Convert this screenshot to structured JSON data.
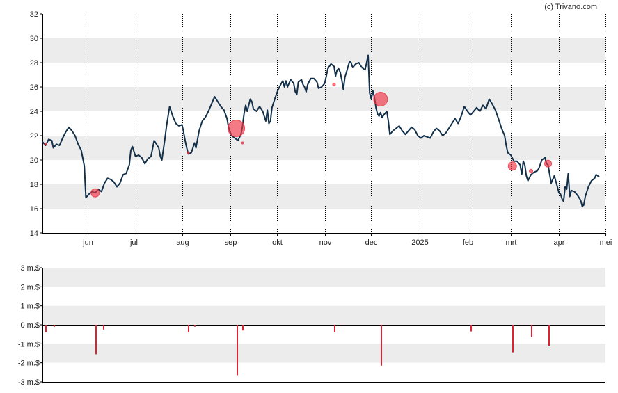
{
  "credit": "(c) Trivano.com",
  "colors": {
    "band": "#ececec",
    "price_line": "#12304a",
    "marker": "#ee3344",
    "bar": "#dd2233",
    "axis": "#000000"
  },
  "chart_data": [
    {
      "type": "line",
      "grid": true,
      "ylim": [
        14,
        32
      ],
      "y_ticks": [
        "14",
        "16",
        "18",
        "20",
        "22",
        "24",
        "26",
        "28",
        "30",
        "32"
      ],
      "x_ticks": [
        {
          "label": "jun",
          "day": 29
        },
        {
          "label": "jul",
          "day": 59
        },
        {
          "label": "aug",
          "day": 90
        },
        {
          "label": "sep",
          "day": 121
        },
        {
          "label": "okt",
          "day": 151
        },
        {
          "label": "nov",
          "day": 182
        },
        {
          "label": "dec",
          "day": 212
        },
        {
          "label": "2025",
          "day": 243
        },
        {
          "label": "feb",
          "day": 274
        },
        {
          "label": "mrt",
          "day": 302
        },
        {
          "label": "apr",
          "day": 333
        },
        {
          "label": "mei",
          "day": 363
        }
      ],
      "x_range": [
        0,
        363
      ],
      "price": [
        [
          0,
          21.5
        ],
        [
          2,
          21.2
        ],
        [
          4,
          21.7
        ],
        [
          6,
          21.6
        ],
        [
          7,
          21.0
        ],
        [
          9,
          21.3
        ],
        [
          11,
          21.2
        ],
        [
          13,
          21.8
        ],
        [
          15,
          22.3
        ],
        [
          17,
          22.7
        ],
        [
          19,
          22.4
        ],
        [
          21,
          22.0
        ],
        [
          23,
          21.3
        ],
        [
          25,
          20.8
        ],
        [
          27,
          19.5
        ],
        [
          28,
          16.9
        ],
        [
          30,
          17.2
        ],
        [
          32,
          17.4
        ],
        [
          34,
          17.3
        ],
        [
          36,
          17.6
        ],
        [
          38,
          17.4
        ],
        [
          40,
          18.1
        ],
        [
          42,
          18.5
        ],
        [
          44,
          18.4
        ],
        [
          46,
          18.2
        ],
        [
          48,
          17.8
        ],
        [
          50,
          18.1
        ],
        [
          52,
          18.8
        ],
        [
          54,
          18.9
        ],
        [
          56,
          19.6
        ],
        [
          57,
          20.8
        ],
        [
          58,
          21.1
        ],
        [
          60,
          20.3
        ],
        [
          62,
          20.4
        ],
        [
          64,
          20.2
        ],
        [
          66,
          19.7
        ],
        [
          68,
          20.1
        ],
        [
          70,
          20.3
        ],
        [
          72,
          21.6
        ],
        [
          74,
          21.2
        ],
        [
          75,
          21.0
        ],
        [
          76,
          20.3
        ],
        [
          77,
          20.0
        ],
        [
          79,
          21.8
        ],
        [
          80,
          22.8
        ],
        [
          81,
          23.6
        ],
        [
          82,
          24.4
        ],
        [
          84,
          23.6
        ],
        [
          86,
          23.0
        ],
        [
          88,
          22.8
        ],
        [
          90,
          22.9
        ],
        [
          91,
          22.3
        ],
        [
          92,
          21.6
        ],
        [
          93,
          21.0
        ],
        [
          94,
          20.5
        ],
        [
          96,
          20.6
        ],
        [
          98,
          21.4
        ],
        [
          99,
          21.0
        ],
        [
          101,
          22.4
        ],
        [
          103,
          23.2
        ],
        [
          105,
          23.5
        ],
        [
          107,
          24.0
        ],
        [
          109,
          24.6
        ],
        [
          111,
          25.2
        ],
        [
          113,
          24.8
        ],
        [
          115,
          24.4
        ],
        [
          117,
          24.1
        ],
        [
          119,
          23.4
        ],
        [
          120,
          22.7
        ],
        [
          121,
          22.3
        ],
        [
          122,
          22.0
        ],
        [
          124,
          21.8
        ],
        [
          126,
          21.6
        ],
        [
          128,
          22.1
        ],
        [
          129,
          22.8
        ],
        [
          130,
          23.8
        ],
        [
          131,
          24.5
        ],
        [
          132,
          24.0
        ],
        [
          134,
          25.0
        ],
        [
          135,
          24.8
        ],
        [
          136,
          24.2
        ],
        [
          138,
          24.0
        ],
        [
          140,
          24.4
        ],
        [
          142,
          24.0
        ],
        [
          144,
          23.2
        ],
        [
          145,
          24.1
        ],
        [
          146,
          23.0
        ],
        [
          147,
          23.2
        ],
        [
          148,
          24.3
        ],
        [
          150,
          25.1
        ],
        [
          152,
          25.8
        ],
        [
          154,
          26.3
        ],
        [
          155,
          26.5
        ],
        [
          156,
          26.0
        ],
        [
          157,
          26.5
        ],
        [
          158,
          26.0
        ],
        [
          160,
          26.6
        ],
        [
          162,
          26.3
        ],
        [
          163,
          25.6
        ],
        [
          164,
          25.4
        ],
        [
          165,
          26.4
        ],
        [
          167,
          26.6
        ],
        [
          168,
          26.2
        ],
        [
          169,
          26.0
        ],
        [
          170,
          25.6
        ],
        [
          171,
          26.2
        ],
        [
          173,
          26.7
        ],
        [
          175,
          26.7
        ],
        [
          177,
          26.4
        ],
        [
          178,
          25.9
        ],
        [
          180,
          26.0
        ],
        [
          182,
          26.3
        ],
        [
          184,
          27.5
        ],
        [
          186,
          27.9
        ],
        [
          188,
          27.7
        ],
        [
          189,
          26.9
        ],
        [
          190,
          27.4
        ],
        [
          191,
          27.5
        ],
        [
          192,
          27.2
        ],
        [
          193,
          26.6
        ],
        [
          194,
          25.8
        ],
        [
          195,
          26.8
        ],
        [
          196,
          27.2
        ],
        [
          198,
          28.1
        ],
        [
          199,
          28.0
        ],
        [
          200,
          27.6
        ],
        [
          202,
          27.9
        ],
        [
          204,
          28.0
        ],
        [
          206,
          27.6
        ],
        [
          208,
          27.4
        ],
        [
          209,
          28.0
        ],
        [
          210,
          28.6
        ],
        [
          211,
          25.5
        ],
        [
          212,
          25.0
        ],
        [
          213,
          25.7
        ],
        [
          214,
          25.2
        ],
        [
          215,
          24.3
        ],
        [
          216,
          23.8
        ],
        [
          217,
          23.6
        ],
        [
          218,
          23.9
        ],
        [
          219,
          23.5
        ],
        [
          220,
          23.7
        ],
        [
          222,
          24.0
        ],
        [
          223,
          23.2
        ],
        [
          224,
          22.1
        ],
        [
          226,
          22.4
        ],
        [
          228,
          22.6
        ],
        [
          230,
          22.8
        ],
        [
          232,
          22.4
        ],
        [
          234,
          22.1
        ],
        [
          236,
          22.4
        ],
        [
          238,
          22.7
        ],
        [
          240,
          22.5
        ],
        [
          242,
          22.0
        ],
        [
          244,
          21.8
        ],
        [
          246,
          22.0
        ],
        [
          248,
          21.9
        ],
        [
          250,
          21.8
        ],
        [
          252,
          22.3
        ],
        [
          254,
          22.6
        ],
        [
          256,
          22.4
        ],
        [
          258,
          22.0
        ],
        [
          260,
          22.2
        ],
        [
          262,
          22.6
        ],
        [
          264,
          23.0
        ],
        [
          266,
          23.4
        ],
        [
          268,
          23.0
        ],
        [
          270,
          23.6
        ],
        [
          272,
          24.4
        ],
        [
          274,
          24.0
        ],
        [
          276,
          23.7
        ],
        [
          278,
          24.0
        ],
        [
          280,
          24.3
        ],
        [
          282,
          24.0
        ],
        [
          284,
          24.5
        ],
        [
          286,
          24.2
        ],
        [
          288,
          25.0
        ],
        [
          290,
          24.6
        ],
        [
          292,
          24.1
        ],
        [
          294,
          23.4
        ],
        [
          296,
          22.6
        ],
        [
          298,
          22.0
        ],
        [
          299,
          21.2
        ],
        [
          300,
          20.6
        ],
        [
          302,
          20.4
        ],
        [
          304,
          19.9
        ],
        [
          306,
          19.9
        ],
        [
          308,
          19.6
        ],
        [
          309,
          18.8
        ],
        [
          310,
          19.9
        ],
        [
          311,
          19.6
        ],
        [
          312,
          18.7
        ],
        [
          313,
          18.3
        ],
        [
          315,
          18.8
        ],
        [
          317,
          19.0
        ],
        [
          319,
          19.1
        ],
        [
          320,
          19.3
        ],
        [
          322,
          20.0
        ],
        [
          324,
          20.2
        ],
        [
          325,
          19.7
        ],
        [
          326,
          19.6
        ],
        [
          328,
          18.1
        ],
        [
          330,
          18.7
        ],
        [
          332,
          17.8
        ],
        [
          333,
          17.3
        ],
        [
          334,
          17.2
        ],
        [
          335,
          16.8
        ],
        [
          336,
          16.6
        ],
        [
          337,
          17.8
        ],
        [
          338,
          17.6
        ],
        [
          339,
          18.9
        ],
        [
          340,
          17.0
        ],
        [
          341,
          17.5
        ],
        [
          343,
          17.4
        ],
        [
          345,
          17.1
        ],
        [
          347,
          16.7
        ],
        [
          348,
          16.2
        ],
        [
          349,
          16.3
        ],
        [
          350,
          17.0
        ],
        [
          352,
          17.8
        ],
        [
          354,
          18.3
        ],
        [
          356,
          18.5
        ],
        [
          357,
          18.8
        ],
        [
          359,
          18.6
        ]
      ],
      "markers": [
        {
          "day": 2,
          "price": 21.3,
          "r": 1.5
        },
        {
          "day": 34,
          "price": 17.3,
          "r": 6
        },
        {
          "day": 94,
          "price": 20.6,
          "r": 1.5
        },
        {
          "day": 125,
          "price": 22.6,
          "r": 12
        },
        {
          "day": 129,
          "price": 21.4,
          "r": 1.5
        },
        {
          "day": 188,
          "price": 26.2,
          "r": 2
        },
        {
          "day": 218,
          "price": 25.0,
          "r": 10
        },
        {
          "day": 303,
          "price": 19.5,
          "r": 6
        },
        {
          "day": 315,
          "price": 19.1,
          "r": 2.5
        },
        {
          "day": 326,
          "price": 19.7,
          "r": 5
        }
      ]
    },
    {
      "type": "bar",
      "grid": true,
      "ylim": [
        -3,
        3
      ],
      "y_ticks": [
        "-3 m.$",
        "-2 m.$",
        "-1 m.$",
        "0 m.$",
        "1 m.$",
        "2 m.$",
        "3 m.$"
      ],
      "x_range": [
        0,
        363
      ],
      "values": [
        {
          "day": 2,
          "value": -0.4
        },
        {
          "day": 7,
          "value": -0.1
        },
        {
          "day": 34,
          "value": -1.55
        },
        {
          "day": 39,
          "value": -0.25
        },
        {
          "day": 94,
          "value": -0.4
        },
        {
          "day": 98,
          "value": -0.1
        },
        {
          "day": 125,
          "value": -2.65
        },
        {
          "day": 129,
          "value": -0.3
        },
        {
          "day": 188,
          "value": -0.4
        },
        {
          "day": 218,
          "value": -2.15
        },
        {
          "day": 276,
          "value": -0.35
        },
        {
          "day": 303,
          "value": -1.45
        },
        {
          "day": 315,
          "value": -0.65
        },
        {
          "day": 326,
          "value": -1.1
        }
      ]
    }
  ]
}
